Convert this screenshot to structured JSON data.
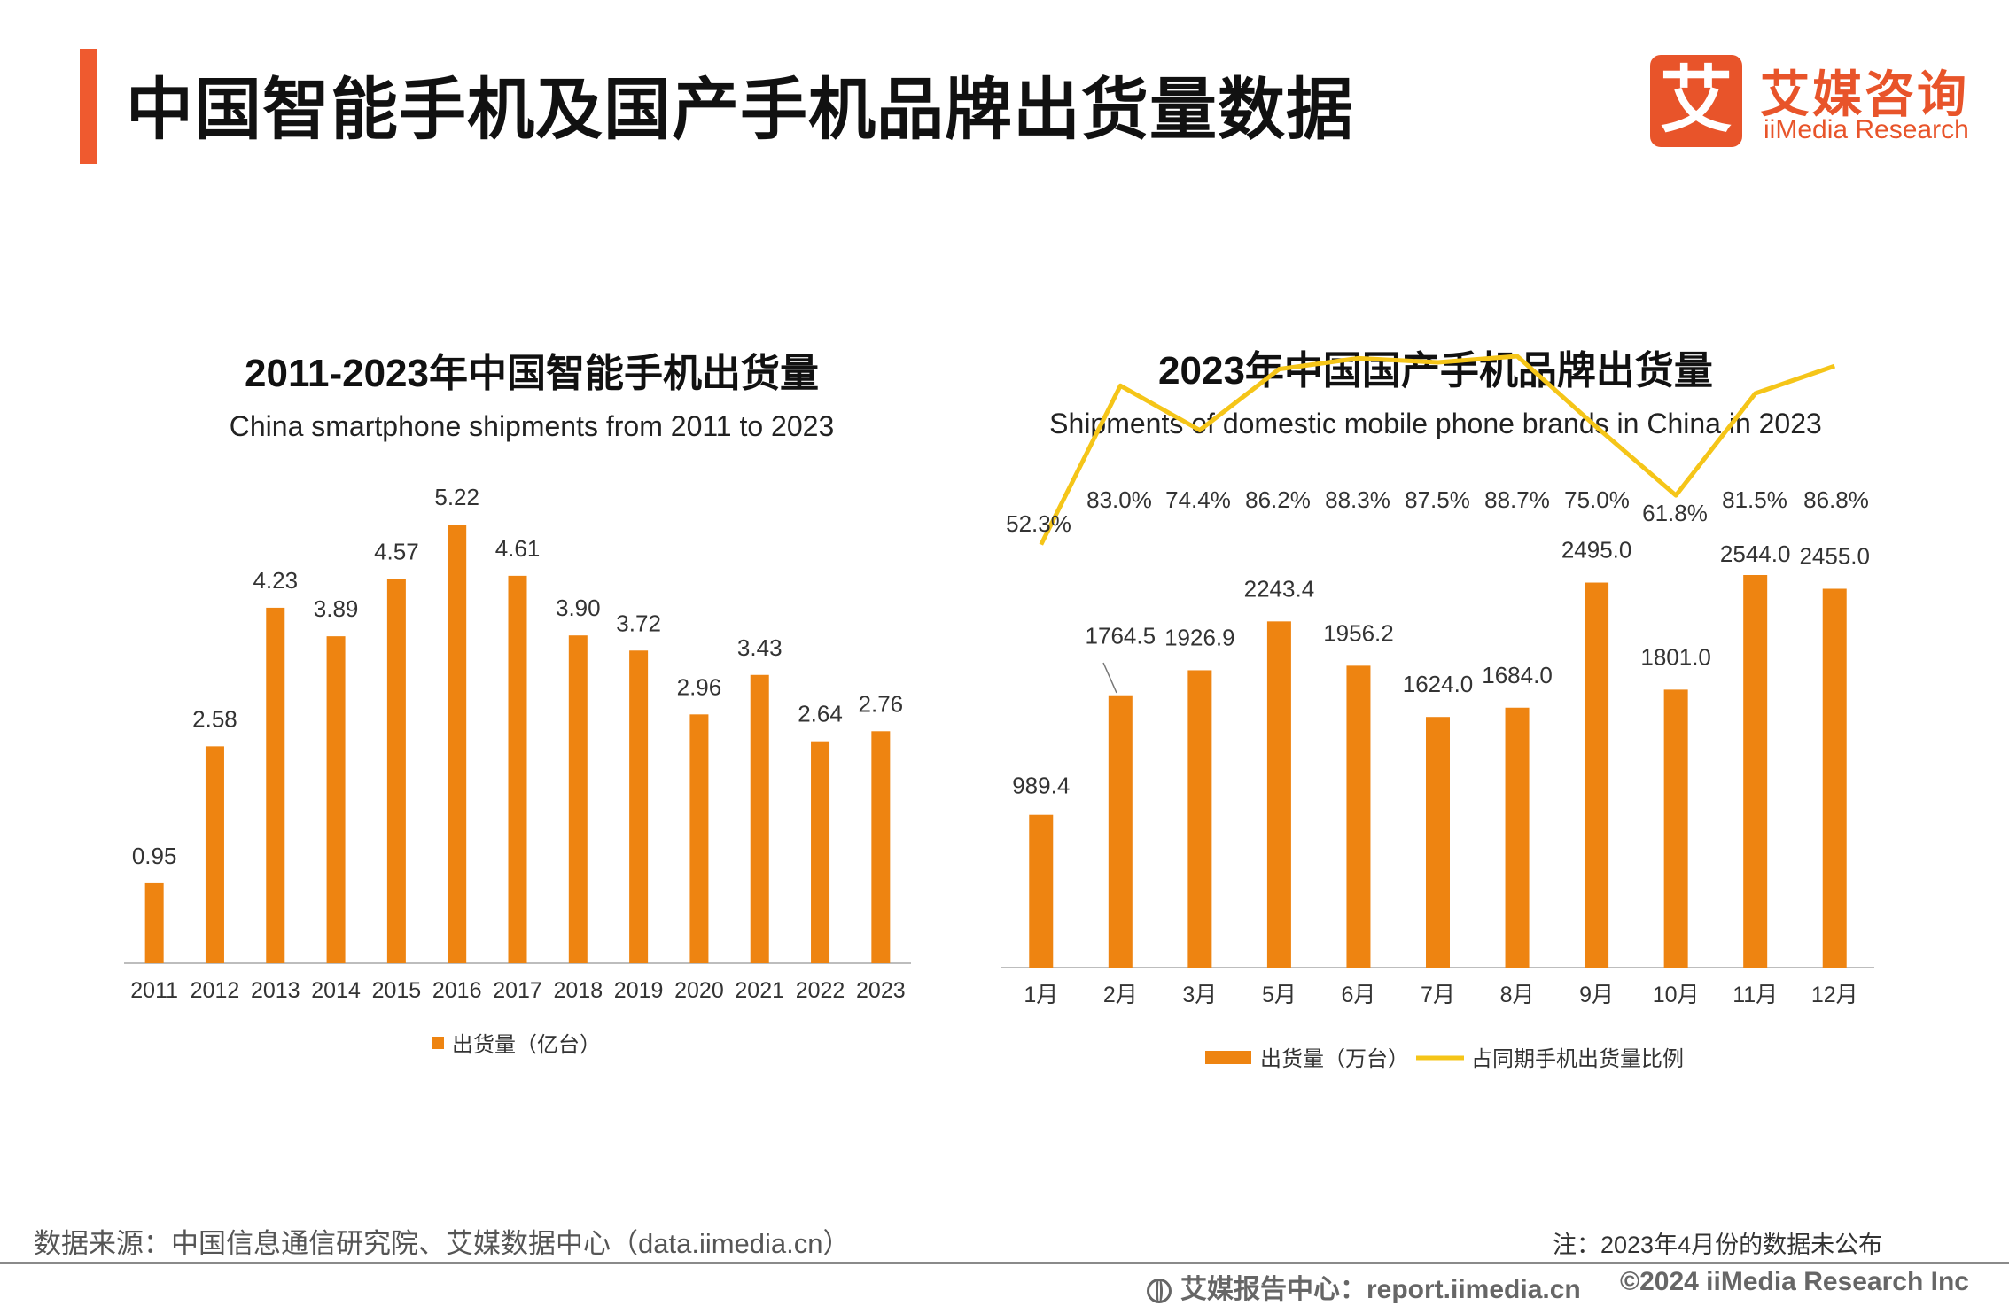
{
  "header": {
    "title": "中国智能手机及国产手机品牌出货量数据",
    "logo_mark": "艾",
    "logo_cn": "艾媒咨询",
    "logo_en": "iiMedia Research"
  },
  "colors": {
    "bar": "#ee8411",
    "line": "#f5c518",
    "accent": "#ef5a2f",
    "axis": "#bdbdbd"
  },
  "chart_data": [
    {
      "type": "bar",
      "title": "2011-2023年中国智能手机出货量",
      "subtitle": "China smartphone shipments from 2011 to 2023",
      "categories": [
        "2011",
        "2012",
        "2013",
        "2014",
        "2015",
        "2016",
        "2017",
        "2018",
        "2019",
        "2020",
        "2021",
        "2022",
        "2023"
      ],
      "values": [
        0.95,
        2.58,
        4.23,
        3.89,
        4.57,
        5.22,
        4.61,
        3.9,
        3.72,
        2.96,
        3.43,
        2.64,
        2.76
      ],
      "labels": [
        "0.95",
        "2.58",
        "4.23",
        "3.89",
        "4.57",
        "5.22",
        "4.61",
        "3.90",
        "3.72",
        "2.96",
        "3.43",
        "2.64",
        "2.76"
      ],
      "legend": [
        "出货量（亿台）"
      ],
      "ylim": [
        0,
        5.6
      ],
      "grid": false,
      "legend_position": "bottom"
    },
    {
      "type": "bar+line",
      "title": "2023年中国国产手机品牌出货量",
      "subtitle": "Shipments of domestic mobile phone brands in China in 2023",
      "categories": [
        "1月",
        "2月",
        "3月",
        "5月",
        "6月",
        "7月",
        "8月",
        "9月",
        "10月",
        "11月",
        "12月"
      ],
      "series": [
        {
          "name": "出货量（万台）",
          "type": "bar",
          "values": [
            989.4,
            1764.5,
            1926.9,
            2243.4,
            1956.2,
            1624.0,
            1684.0,
            2495.0,
            1801.0,
            2544.0,
            2455.0
          ],
          "labels": [
            "989.4",
            "1764.5",
            "1926.9",
            "2243.4",
            "1956.2",
            "1624.0",
            "1684.0",
            "2495.0",
            "1801.0",
            "2544.0",
            "2455.0"
          ]
        },
        {
          "name": "占同期手机出货量比例",
          "type": "line",
          "values": [
            52.3,
            83.0,
            74.4,
            86.2,
            88.3,
            87.5,
            88.7,
            75.0,
            61.8,
            81.5,
            86.8
          ],
          "labels": [
            "52.3%",
            "83.0%",
            "74.4%",
            "86.2%",
            "88.3%",
            "87.5%",
            "88.7%",
            "75.0%",
            "61.8%",
            "81.5%",
            "86.8%"
          ]
        }
      ],
      "ylim": [
        0,
        2700
      ],
      "ylim_line": [
        0,
        100
      ],
      "grid": false,
      "legend_position": "bottom"
    }
  ],
  "footer": {
    "source": "数据来源：中国信息通信研究院、艾媒数据中心（data.iimedia.cn）",
    "note": "注：2023年4月份的数据未公布",
    "report": "艾媒报告中心：report.iimedia.cn",
    "copyright": "©2024  iiMedia Research  Inc"
  }
}
